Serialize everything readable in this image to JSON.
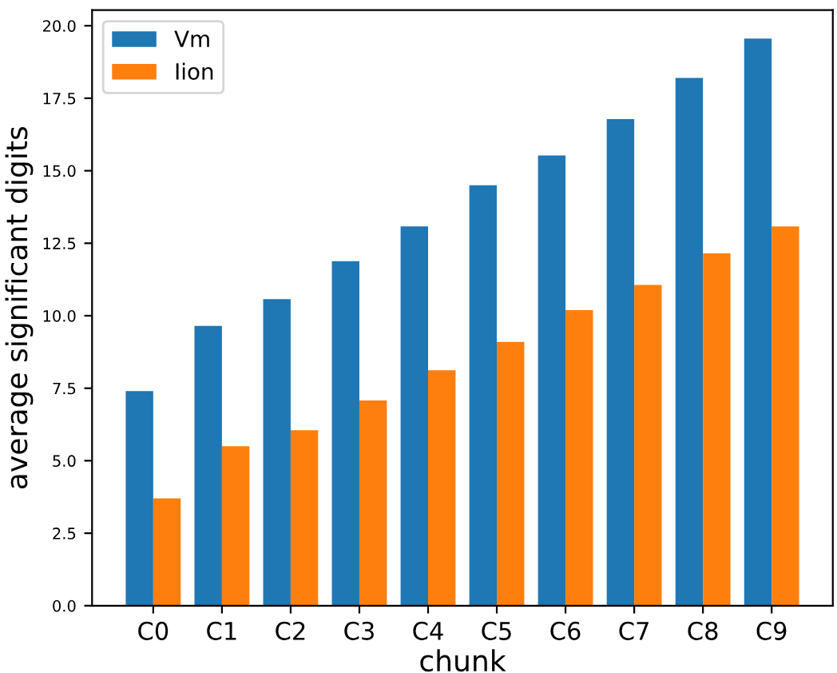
{
  "chart_data": {
    "type": "bar",
    "xlabel": "chunk",
    "ylabel": "average significant digits",
    "categories": [
      "C0",
      "C1",
      "C2",
      "C3",
      "C4",
      "C5",
      "C6",
      "C7",
      "C8",
      "C9"
    ],
    "series": [
      {
        "name": "Vm",
        "color": "#1f77b4",
        "values": [
          7.4,
          9.65,
          10.57,
          11.88,
          13.08,
          14.5,
          15.53,
          16.78,
          18.2,
          19.56
        ]
      },
      {
        "name": "Iion",
        "color": "#ff7f0e",
        "values": [
          3.7,
          5.5,
          6.05,
          7.08,
          8.12,
          9.1,
          10.19,
          11.06,
          12.15,
          13.08
        ]
      }
    ],
    "ylim": [
      0,
      20.54
    ],
    "yticks": [
      {
        "value": 0,
        "label": "0.0"
      },
      {
        "value": 2.5,
        "label": "2.5"
      },
      {
        "value": 5,
        "label": "5.0"
      },
      {
        "value": 7.5,
        "label": "7.5"
      },
      {
        "value": 10,
        "label": "10.0"
      },
      {
        "value": 12.5,
        "label": "12.5"
      },
      {
        "value": 15,
        "label": "15.0"
      },
      {
        "value": 17.5,
        "label": "17.5"
      },
      {
        "value": 20,
        "label": "20.0"
      }
    ],
    "grid": false,
    "legend": "top left"
  }
}
